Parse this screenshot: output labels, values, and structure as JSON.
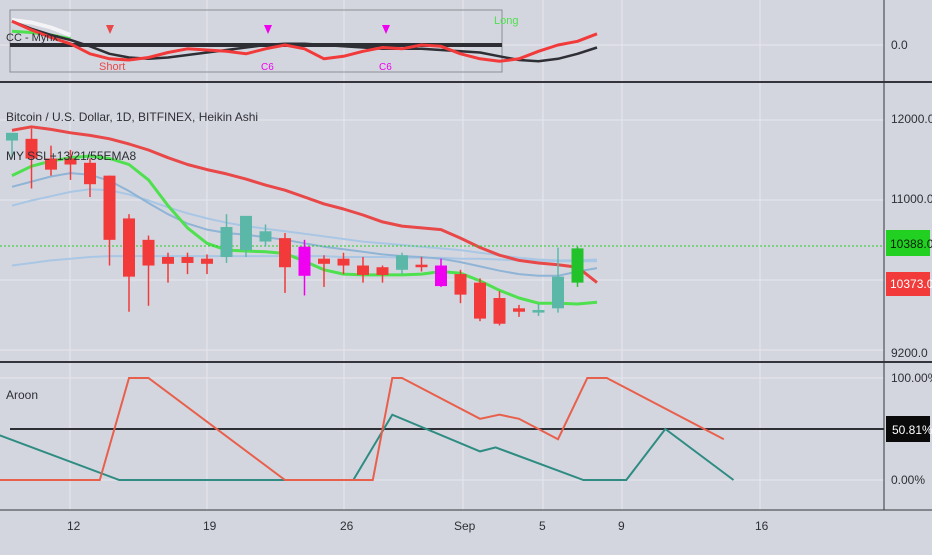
{
  "colors": {
    "bg": "#d4d6df",
    "grid": "#e6e7ee",
    "separator": "#34353c",
    "bull": "#22c32a",
    "bear": "#f23a3a",
    "magenta": "#f000f0",
    "teal": "#5bb8a8",
    "ssl_up": "#4ee04e",
    "ssl_down": "#e84848",
    "ema_light": "#a9c7e4",
    "ema_dark": "#8fb4d6",
    "aroon_up": "#e8604c",
    "aroon_down": "#2e8c82",
    "text": "#2e2f35",
    "price_line": "#22d022"
  },
  "osc_pane": {
    "label": "CC - Mynx",
    "axis_label": "0.0",
    "short_label": "Short",
    "long_label": "Long",
    "signal_label": "C6",
    "signal2_label": "C6"
  },
  "price_pane": {
    "title": "Bitcoin / U.S. Dollar, 1D, BITFINEX, Heikin Ashi",
    "indicator": "MY SSL+13/21/55EMA8",
    "axis_labels": [
      "12000.0",
      "11000.0",
      "9200.0"
    ],
    "last_price_green": "10388.0",
    "last_price_red": "10373.0"
  },
  "aroon_pane": {
    "label": "Aroon",
    "axis_labels": [
      "100.00%",
      "0.00%"
    ],
    "current_value": "50.81%"
  },
  "x_axis": {
    "labels": [
      "12",
      "19",
      "26",
      "Sep",
      "5",
      "9",
      "16"
    ]
  },
  "chart_data": {
    "type": "candlestick",
    "title": "Bitcoin / U.S. Dollar, 1D, BITFINEX, Heikin Ashi",
    "ylim": [
      9200,
      12400
    ],
    "candles": [
      {
        "o": 11850,
        "h": 11850,
        "l": 11550,
        "c": 11760,
        "color": "teal"
      },
      {
        "o": 11780,
        "h": 11900,
        "l": 11200,
        "c": 11550,
        "color": "red"
      },
      {
        "o": 11550,
        "h": 11700,
        "l": 11350,
        "c": 11420,
        "color": "red"
      },
      {
        "o": 11550,
        "h": 11650,
        "l": 11300,
        "c": 11480,
        "color": "red"
      },
      {
        "o": 11500,
        "h": 11550,
        "l": 11100,
        "c": 11250,
        "color": "red"
      },
      {
        "o": 11350,
        "h": 11350,
        "l": 10300,
        "c": 10600,
        "color": "red"
      },
      {
        "o": 10850,
        "h": 10900,
        "l": 9760,
        "c": 10170,
        "color": "red"
      },
      {
        "o": 10600,
        "h": 10650,
        "l": 9830,
        "c": 10300,
        "color": "red"
      },
      {
        "o": 10400,
        "h": 10450,
        "l": 10100,
        "c": 10320,
        "color": "red"
      },
      {
        "o": 10400,
        "h": 10450,
        "l": 10200,
        "c": 10330,
        "color": "red"
      },
      {
        "o": 10380,
        "h": 10430,
        "l": 10200,
        "c": 10320,
        "color": "red"
      },
      {
        "o": 10400,
        "h": 10900,
        "l": 10330,
        "c": 10750,
        "color": "teal"
      },
      {
        "o": 10480,
        "h": 10850,
        "l": 10400,
        "c": 10880,
        "color": "teal"
      },
      {
        "o": 10700,
        "h": 10780,
        "l": 10520,
        "c": 10580,
        "color": "teal"
      },
      {
        "o": 10620,
        "h": 10680,
        "l": 9980,
        "c": 10280,
        "color": "red"
      },
      {
        "o": 10520,
        "h": 10600,
        "l": 9950,
        "c": 10180,
        "color": "magenta"
      },
      {
        "o": 10380,
        "h": 10420,
        "l": 10050,
        "c": 10320,
        "color": "red"
      },
      {
        "o": 10380,
        "h": 10450,
        "l": 10200,
        "c": 10300,
        "color": "red"
      },
      {
        "o": 10300,
        "h": 10400,
        "l": 10100,
        "c": 10190,
        "color": "red"
      },
      {
        "o": 10280,
        "h": 10300,
        "l": 10100,
        "c": 10190,
        "color": "red"
      },
      {
        "o": 10250,
        "h": 10450,
        "l": 10200,
        "c": 10420,
        "color": "teal"
      },
      {
        "o": 10310,
        "h": 10400,
        "l": 10230,
        "c": 10280,
        "color": "red"
      },
      {
        "o": 10300,
        "h": 10380,
        "l": 10050,
        "c": 10060,
        "color": "magenta"
      },
      {
        "o": 10200,
        "h": 10250,
        "l": 9860,
        "c": 9960,
        "color": "red"
      },
      {
        "o": 10100,
        "h": 10150,
        "l": 9650,
        "c": 9680,
        "color": "red"
      },
      {
        "o": 9920,
        "h": 10000,
        "l": 9600,
        "c": 9620,
        "color": "red"
      },
      {
        "o": 9800,
        "h": 9840,
        "l": 9700,
        "c": 9760,
        "color": "red"
      },
      {
        "o": 9780,
        "h": 9850,
        "l": 9710,
        "c": 9750,
        "color": "teal"
      },
      {
        "o": 9800,
        "h": 10510,
        "l": 9750,
        "c": 10170,
        "color": "teal"
      },
      {
        "o": 10100,
        "h": 10520,
        "l": 10050,
        "c": 10500,
        "color": "green"
      }
    ],
    "ssl_upper": [
      11880,
      11920,
      11890,
      11850,
      11820,
      11780,
      11720,
      11650,
      11560,
      11480,
      11420,
      11370,
      11310,
      11240,
      11180,
      11100,
      11020,
      10960,
      10890,
      10810,
      10760,
      10740,
      10720,
      10620,
      10510,
      10420,
      10360,
      10330,
      10310,
      10280,
      10100
    ],
    "ssl_lower": [
      11350,
      11460,
      11520,
      11560,
      11580,
      11550,
      11480,
      11300,
      11000,
      10740,
      10560,
      10480,
      10470,
      10460,
      10440,
      10350,
      10250,
      10200,
      10190,
      10190,
      10190,
      10200,
      10230,
      10210,
      10120,
      10010,
      9920,
      9860,
      9860,
      9850,
      9870
    ],
    "ema_fast": [
      11220,
      11280,
      11340,
      11380,
      11360,
      11290,
      11170,
      11030,
      10900,
      10790,
      10720,
      10680,
      10660,
      10630,
      10600,
      10560,
      10520,
      10490,
      10460,
      10430,
      10410,
      10400,
      10380,
      10340,
      10290,
      10240,
      10200,
      10180,
      10180,
      10230,
      10270
    ],
    "ema_slow": [
      11000,
      11060,
      11110,
      11160,
      11190,
      11180,
      11130,
      11060,
      10980,
      10910,
      10850,
      10800,
      10760,
      10730,
      10700,
      10670,
      10640,
      10610,
      10580,
      10560,
      10540,
      10520,
      10500,
      10480,
      10450,
      10420,
      10390,
      10370,
      10360,
      10360,
      10370
    ],
    "ema_long": [
      10300,
      10330,
      10360,
      10380,
      10400,
      10410,
      10410,
      10410,
      10410,
      10410,
      10410,
      10410,
      10410,
      10410,
      10410,
      10410,
      10410,
      10400,
      10400,
      10400,
      10390,
      10390,
      10390,
      10380,
      10380,
      10370,
      10360,
      10360,
      10350,
      10350,
      10350
    ],
    "oscillator": {
      "ylim": [
        -1,
        1
      ],
      "line_red": [
        0.95,
        0.6,
        0.3,
        0.05,
        -0.35,
        -0.55,
        -0.6,
        -0.5,
        -0.3,
        -0.15,
        -0.2,
        -0.25,
        -0.35,
        -0.15,
        0.0,
        -0.15,
        -0.55,
        -0.45,
        -0.25,
        -0.1,
        -0.15,
        0.0,
        -0.05,
        -0.35,
        -0.55,
        -0.65,
        -0.55,
        -0.25,
        0.0,
        0.15,
        0.45
      ],
      "line_black": [
        0.95,
        0.65,
        0.4,
        0.2,
        -0.05,
        -0.35,
        -0.5,
        -0.55,
        -0.5,
        -0.4,
        -0.3,
        -0.2,
        -0.1,
        0.0,
        0.05,
        0.05,
        0.0,
        -0.05,
        -0.1,
        -0.15,
        -0.15,
        -0.15,
        -0.2,
        -0.25,
        -0.3,
        -0.45,
        -0.6,
        -0.65,
        -0.55,
        -0.35,
        -0.1
      ],
      "line_white": [
        1.0,
        0.9,
        0.7,
        0.4
      ],
      "line_green": [
        0.55,
        0.5,
        0.4,
        0.25
      ]
    },
    "aroon": {
      "ylim": [
        0,
        100
      ],
      "up": [
        [
          -1,
          0
        ],
        [
          4.5,
          0
        ],
        [
          6,
          100
        ],
        [
          7,
          100
        ],
        [
          14,
          0
        ],
        [
          18.5,
          0
        ],
        [
          19.5,
          100
        ],
        [
          20,
          100
        ],
        [
          24,
          60
        ],
        [
          25,
          64
        ],
        [
          26,
          60
        ],
        [
          28,
          40
        ],
        [
          29.5,
          100
        ],
        [
          30.5,
          100
        ],
        [
          36.5,
          40
        ]
      ],
      "down": [
        [
          -1.5,
          50
        ],
        [
          5.5,
          0
        ],
        [
          14,
          0
        ],
        [
          17.5,
          0
        ],
        [
          19.5,
          64
        ],
        [
          24,
          28
        ],
        [
          24.8,
          32
        ],
        [
          29.3,
          0
        ],
        [
          31.5,
          0
        ],
        [
          33.5,
          50
        ],
        [
          37,
          0
        ]
      ]
    }
  }
}
